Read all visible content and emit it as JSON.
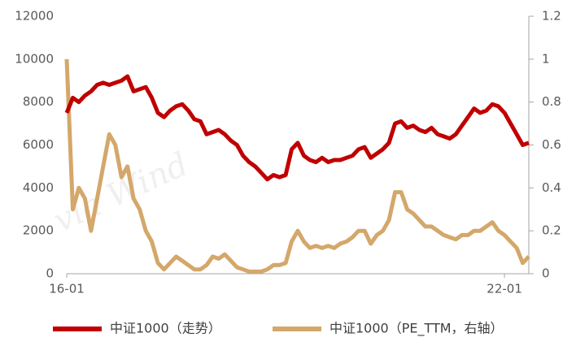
{
  "chart_data": {
    "type": "line",
    "watermark": "via Wind",
    "categories": [
      "16-01",
      null,
      null,
      null,
      null,
      null,
      null,
      null,
      null,
      null,
      null,
      null,
      null,
      null,
      null,
      null,
      null,
      null,
      null,
      null,
      null,
      null,
      null,
      null,
      null,
      null,
      null,
      null,
      null,
      null,
      null,
      null,
      null,
      null,
      null,
      null,
      null,
      null,
      null,
      null,
      null,
      null,
      null,
      null,
      null,
      null,
      null,
      null,
      null,
      null,
      null,
      null,
      null,
      null,
      null,
      null,
      null,
      null,
      null,
      null,
      null,
      null,
      null,
      null,
      null,
      null,
      null,
      null,
      null,
      null,
      null,
      null,
      "22-01",
      null,
      null,
      null,
      null
    ],
    "series": [
      {
        "name": "中证1000（走势）",
        "color": "#c00000",
        "axis": "y",
        "values": [
          7500,
          8200,
          8000,
          8300,
          8500,
          8800,
          8900,
          8800,
          8900,
          9000,
          9200,
          8500,
          8600,
          8700,
          8200,
          7500,
          7300,
          7600,
          7800,
          7900,
          7600,
          7200,
          7100,
          6500,
          6600,
          6700,
          6500,
          6200,
          6000,
          5500,
          5200,
          5000,
          4700,
          4400,
          4600,
          4500,
          4600,
          5800,
          6100,
          5500,
          5300,
          5200,
          5400,
          5200,
          5300,
          5300,
          5400,
          5500,
          5800,
          5900,
          5400,
          5600,
          5800,
          6100,
          7000,
          7100,
          6800,
          6900,
          6700,
          6600,
          6800,
          6500,
          6400,
          6300,
          6500,
          6900,
          7300,
          7700,
          7500,
          7600,
          7900,
          7800,
          7500,
          7000,
          6500,
          6000,
          6100
        ]
      },
      {
        "name": "中证1000（PE_TTM，右轴）",
        "color": "#d4a76a",
        "axis": "y2",
        "values": [
          1.0,
          0.3,
          0.4,
          0.35,
          0.2,
          0.35,
          0.5,
          0.65,
          0.6,
          0.45,
          0.5,
          0.35,
          0.3,
          0.2,
          0.15,
          0.05,
          0.02,
          0.05,
          0.08,
          0.06,
          0.04,
          0.02,
          0.02,
          0.04,
          0.08,
          0.07,
          0.09,
          0.06,
          0.03,
          0.02,
          0.01,
          0.01,
          0.01,
          0.02,
          0.04,
          0.04,
          0.05,
          0.15,
          0.2,
          0.15,
          0.12,
          0.13,
          0.12,
          0.13,
          0.12,
          0.14,
          0.15,
          0.17,
          0.2,
          0.2,
          0.14,
          0.18,
          0.2,
          0.25,
          0.38,
          0.38,
          0.3,
          0.28,
          0.25,
          0.22,
          0.22,
          0.2,
          0.18,
          0.17,
          0.16,
          0.18,
          0.18,
          0.2,
          0.2,
          0.22,
          0.24,
          0.2,
          0.18,
          0.15,
          0.12,
          0.05,
          0.08
        ]
      }
    ],
    "ylim": [
      0,
      12000
    ],
    "yticks": [
      0,
      2000,
      4000,
      6000,
      8000,
      10000,
      12000
    ],
    "y2lim": [
      0,
      1.2
    ],
    "y2ticks": [
      0,
      0.2,
      0.4,
      0.6,
      0.8,
      1,
      1.2
    ],
    "legend": "bottom"
  }
}
